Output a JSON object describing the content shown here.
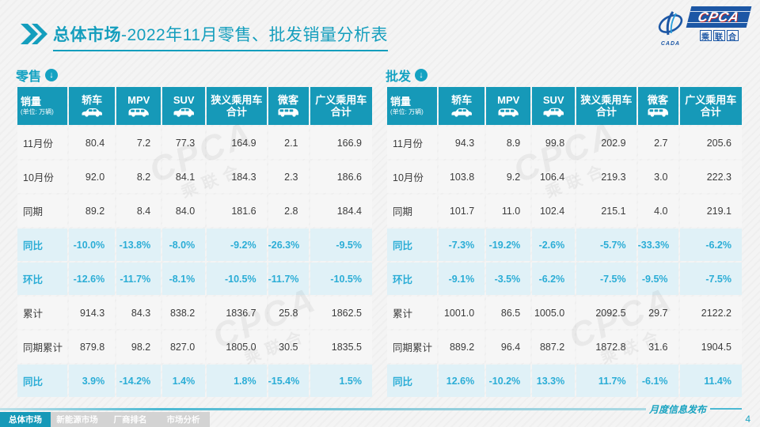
{
  "header": {
    "title_prefix": "总体市场",
    "title_rest": "-2022年11月零售、批发销量分析表"
  },
  "logo": {
    "cpca": "CPCA",
    "cada": "CADA",
    "chars": [
      "乘",
      "联",
      "合"
    ]
  },
  "colors": {
    "accent_teal": "#1699B8",
    "percent_text": "#2BADD6",
    "percent_row_bg": "#E0F1F7",
    "logo_navy": "#1C57A5"
  },
  "columns": {
    "sales_label": "销量",
    "sales_unit": "(单位: 万辆)",
    "headers": [
      {
        "label": "轿车",
        "icon": "sedan-icon"
      },
      {
        "label": "MPV",
        "icon": "mpv-icon"
      },
      {
        "label": "SUV",
        "icon": "suv-icon"
      },
      {
        "label": "狭义乘用车",
        "label2": "合计"
      },
      {
        "label": "微客",
        "icon": "van-icon"
      },
      {
        "label": "广义乘用车",
        "label2": "合计"
      }
    ]
  },
  "tables": [
    {
      "id": "retail",
      "title": "零售",
      "rows": [
        {
          "label": "11月份",
          "type": "num",
          "values": [
            "80.4",
            "7.2",
            "77.3",
            "164.9",
            "2.1",
            "166.9"
          ]
        },
        {
          "label": "10月份",
          "type": "num",
          "values": [
            "92.0",
            "8.2",
            "84.1",
            "184.3",
            "2.3",
            "186.6"
          ]
        },
        {
          "label": "同期",
          "type": "num",
          "values": [
            "89.2",
            "8.4",
            "84.0",
            "181.6",
            "2.8",
            "184.4"
          ]
        },
        {
          "label": "同比",
          "type": "pct",
          "values": [
            "-10.0%",
            "-13.8%",
            "-8.0%",
            "-9.2%",
            "-26.3%",
            "-9.5%"
          ]
        },
        {
          "label": "环比",
          "type": "pct",
          "values": [
            "-12.6%",
            "-11.7%",
            "-8.1%",
            "-10.5%",
            "-11.7%",
            "-10.5%"
          ]
        },
        {
          "label": "累计",
          "type": "num",
          "values": [
            "914.3",
            "84.3",
            "838.2",
            "1836.7",
            "25.8",
            "1862.5"
          ]
        },
        {
          "label": "同期累计",
          "type": "num",
          "values": [
            "879.8",
            "98.2",
            "827.0",
            "1805.0",
            "30.5",
            "1835.5"
          ]
        },
        {
          "label": "同比",
          "type": "pct",
          "values": [
            "3.9%",
            "-14.2%",
            "1.4%",
            "1.8%",
            "-15.4%",
            "1.5%"
          ]
        }
      ]
    },
    {
      "id": "wholesale",
      "title": "批发",
      "rows": [
        {
          "label": "11月份",
          "type": "num",
          "values": [
            "94.3",
            "8.9",
            "99.8",
            "202.9",
            "2.7",
            "205.6"
          ]
        },
        {
          "label": "10月份",
          "type": "num",
          "values": [
            "103.8",
            "9.2",
            "106.4",
            "219.3",
            "3.0",
            "222.3"
          ]
        },
        {
          "label": "同期",
          "type": "num",
          "values": [
            "101.7",
            "11.0",
            "102.4",
            "215.1",
            "4.0",
            "219.1"
          ]
        },
        {
          "label": "同比",
          "type": "pct",
          "values": [
            "-7.3%",
            "-19.2%",
            "-2.6%",
            "-5.7%",
            "-33.3%",
            "-6.2%"
          ]
        },
        {
          "label": "环比",
          "type": "pct",
          "values": [
            "-9.1%",
            "-3.5%",
            "-6.2%",
            "-7.5%",
            "-9.5%",
            "-7.5%"
          ]
        },
        {
          "label": "累计",
          "type": "num",
          "values": [
            "1001.0",
            "86.5",
            "1005.0",
            "2092.5",
            "29.7",
            "2122.2"
          ]
        },
        {
          "label": "同期累计",
          "type": "num",
          "values": [
            "889.2",
            "96.4",
            "887.2",
            "1872.8",
            "31.6",
            "1904.5"
          ]
        },
        {
          "label": "同比",
          "type": "pct",
          "values": [
            "12.6%",
            "-10.2%",
            "13.3%",
            "11.7%",
            "-6.1%",
            "11.4%"
          ]
        }
      ]
    }
  ],
  "watermark": {
    "line1": "CPCA",
    "line2": "乘联合"
  },
  "footer": {
    "tabs": [
      {
        "label": "总体市场",
        "active": true
      },
      {
        "label": "新能源市场",
        "active": false
      },
      {
        "label": "厂商排名",
        "active": false
      },
      {
        "label": "市场分析",
        "active": false
      }
    ],
    "note": "月度信息发布",
    "page_number": "4"
  }
}
